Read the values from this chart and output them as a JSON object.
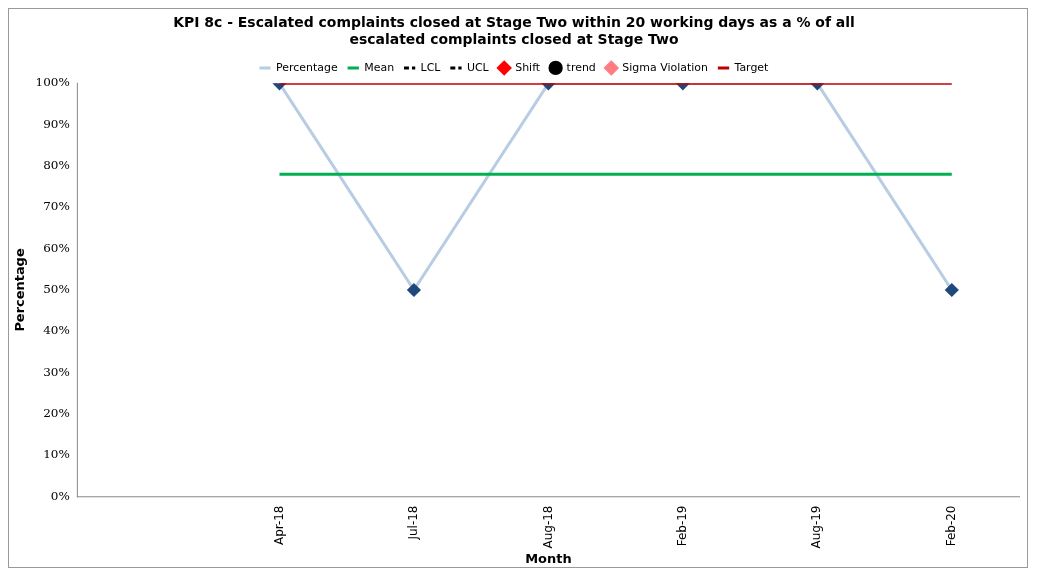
{
  "chart_data": {
    "type": "line",
    "title": "KPI 8c - Escalated complaints closed at Stage Two within 20 working days as a % of all escalated complaints closed at Stage Two",
    "xlabel": "Month",
    "ylabel": "Percentage",
    "categories": [
      null,
      "Apr-18",
      "Jul-18",
      "Aug-18",
      "Feb-19",
      "Aug-19",
      "Feb-20"
    ],
    "series": [
      {
        "name": "Percentage",
        "color": "#b8cce4",
        "marker": "diamond",
        "line_style": "solid",
        "values": [
          null,
          100,
          50,
          100,
          100,
          100,
          50
        ]
      },
      {
        "name": "Mean",
        "color": "#00b050",
        "marker": "none",
        "line_style": "solid",
        "values": [
          null,
          78,
          78,
          78,
          78,
          78,
          78
        ]
      },
      {
        "name": "LCL",
        "color": "#000000",
        "marker": "none",
        "line_style": "dashed",
        "values": [
          null,
          null,
          null,
          null,
          null,
          null,
          null
        ]
      },
      {
        "name": "UCL",
        "color": "#000000",
        "marker": "none",
        "line_style": "dashed",
        "values": [
          null,
          null,
          null,
          null,
          null,
          null,
          null
        ]
      },
      {
        "name": "Shift",
        "type": "scatter",
        "color": "#ff0000",
        "marker": "diamond",
        "values": [
          null,
          null,
          null,
          null,
          null,
          null,
          null
        ]
      },
      {
        "name": "trend",
        "type": "scatter",
        "color": "#000000",
        "marker": "circle",
        "values": [
          null,
          null,
          null,
          null,
          null,
          null,
          null
        ]
      },
      {
        "name": "Sigma Violation",
        "type": "scatter",
        "color": "#ff7c80",
        "marker": "diamond",
        "values": [
          null,
          null,
          null,
          null,
          null,
          null,
          null
        ]
      },
      {
        "name": "Target",
        "color": "#c00000",
        "marker": "none",
        "line_style": "solid",
        "values": [
          null,
          100,
          100,
          100,
          100,
          100,
          100
        ]
      }
    ],
    "ylim": [
      0,
      100
    ],
    "yticks": [
      {
        "value": 0,
        "label": "0%"
      },
      {
        "value": 10,
        "label": "10%"
      },
      {
        "value": 20,
        "label": "20%"
      },
      {
        "value": 30,
        "label": "30%"
      },
      {
        "value": 40,
        "label": "40%"
      },
      {
        "value": 50,
        "label": "50%"
      },
      {
        "value": 60,
        "label": "60%"
      },
      {
        "value": 70,
        "label": "70%"
      },
      {
        "value": 80,
        "label": "80%"
      },
      {
        "value": 90,
        "label": "90%"
      },
      {
        "value": 100,
        "label": "100%"
      }
    ],
    "grid": false,
    "legend": "top"
  }
}
